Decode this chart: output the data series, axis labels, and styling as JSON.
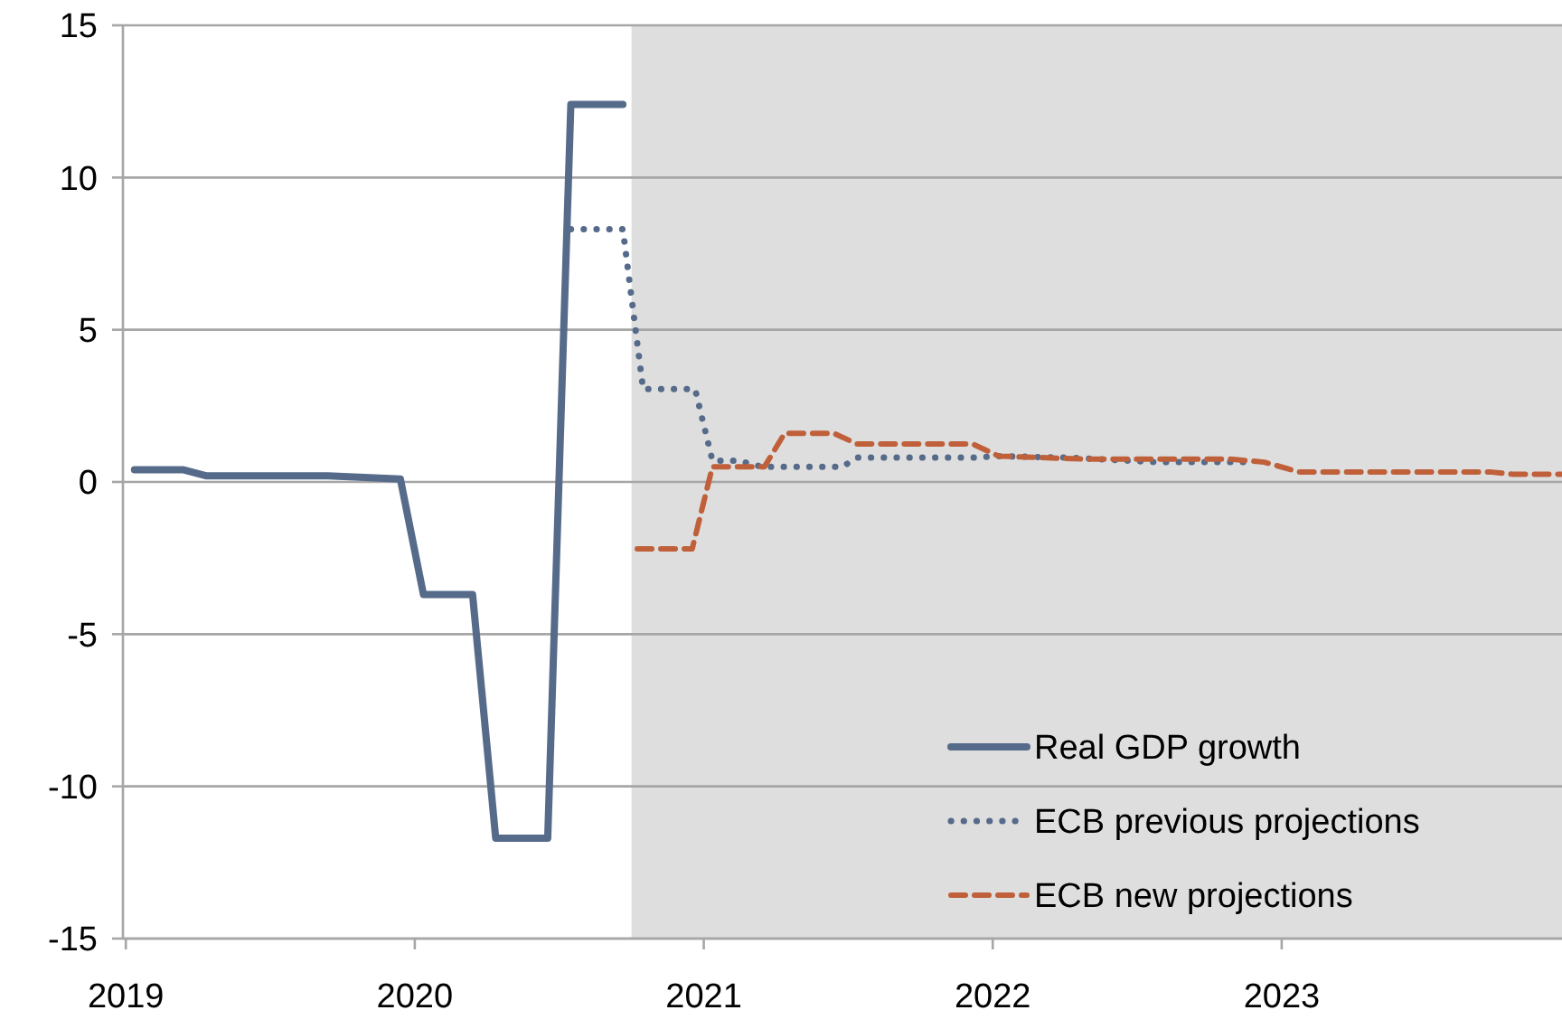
{
  "chart_data": {
    "type": "line",
    "xlim": [
      2018.99,
      2023.97
    ],
    "xticks": [
      2019,
      2020,
      2021,
      2022,
      2023
    ],
    "ylim": [
      -15,
      15
    ],
    "yticks": [
      -15,
      -10,
      -5,
      0,
      5,
      10,
      15
    ],
    "grid": "y",
    "legend": "bottom right",
    "bands": [
      {
        "axis": "x",
        "from": 2020.75,
        "to": 2023.97,
        "color": "#dedede"
      }
    ],
    "series": [
      {
        "name": "Real GDP growth",
        "color": "#566b8a",
        "line_style": "solid",
        "x": [
          2019.03,
          2019.2,
          2019.28,
          2019.7,
          2019.95,
          2020.03,
          2020.2,
          2020.28,
          2020.46,
          2020.54,
          2020.72
        ],
        "values": [
          0.4,
          0.4,
          0.2,
          0.2,
          0.1,
          -3.7,
          -3.7,
          -11.7,
          -11.7,
          12.4,
          12.4
        ]
      },
      {
        "name": "ECB previous projections",
        "color": "#566b8a",
        "line_style": "dotted",
        "x": [
          2020.54,
          2020.72,
          2020.79,
          2020.97,
          2021.03,
          2021.12,
          2021.2,
          2021.29,
          2021.48,
          2021.53,
          2021.96,
          2022.0,
          2022.26,
          2022.57,
          2022.87
        ],
        "values": [
          8.3,
          8.3,
          3.05,
          3.05,
          0.7,
          0.7,
          0.5,
          0.5,
          0.5,
          0.8,
          0.8,
          0.85,
          0.8,
          0.65,
          0.65
        ]
      },
      {
        "name": "ECB new projections",
        "color": "#c0603a",
        "line_style": "dashed",
        "x": [
          2020.77,
          2020.96,
          2021.03,
          2021.21,
          2021.28,
          2021.45,
          2021.53,
          2021.93,
          2022.02,
          2022.32,
          2022.82,
          2022.94,
          2023.06,
          2023.72,
          2023.8,
          2023.97
        ],
        "values": [
          -2.2,
          -2.2,
          0.5,
          0.5,
          1.6,
          1.6,
          1.25,
          1.25,
          0.85,
          0.75,
          0.75,
          0.65,
          0.33,
          0.33,
          0.25,
          0.25
        ]
      }
    ]
  }
}
